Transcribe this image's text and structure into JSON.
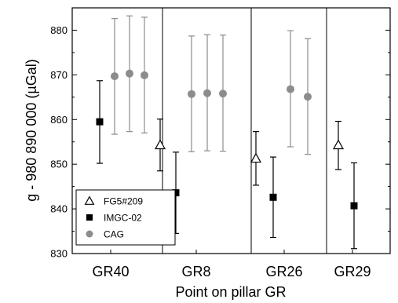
{
  "chart_data": {
    "type": "scatter",
    "xlabel": "Point on pillar GR",
    "ylabel": "g - 980 890 000 (µGal)",
    "categories": [
      "GR40",
      "GR8",
      "GR26",
      "GR29"
    ],
    "ylim": [
      830,
      885
    ],
    "yticks": [
      830,
      840,
      850,
      860,
      870,
      880
    ],
    "minor_ticks": true,
    "legend_position": "lower-left",
    "series": [
      {
        "name": "FG5#209",
        "marker": "open-triangle",
        "color": "#000000",
        "points": [
          {
            "category": "GR8",
            "offset": 0,
            "y": 854.3,
            "err_low": 848.5,
            "err_high": 860.1
          },
          {
            "category": "GR26",
            "offset": 0,
            "y": 851.3,
            "err_low": 845.3,
            "err_high": 857.3
          },
          {
            "category": "GR29",
            "offset": 0,
            "y": 854.3,
            "err_low": 848.8,
            "err_high": 859.6
          }
        ]
      },
      {
        "name": "IMGC-02",
        "marker": "filled-square",
        "color": "#000000",
        "points": [
          {
            "category": "GR40",
            "offset": 0,
            "y": 859.5,
            "err_low": 850.2,
            "err_high": 868.7
          },
          {
            "category": "GR8",
            "offset": 1,
            "y": 843.6,
            "err_low": 834.5,
            "err_high": 852.7
          },
          {
            "category": "GR26",
            "offset": 1,
            "y": 842.6,
            "err_low": 833.6,
            "err_high": 851.6
          },
          {
            "category": "GR29",
            "offset": 1,
            "y": 840.7,
            "err_low": 831.1,
            "err_high": 850.3
          }
        ]
      },
      {
        "name": "CAG",
        "marker": "filled-circle",
        "color": "#8c8c8c",
        "points": [
          {
            "category": "GR40",
            "offset": 1,
            "y": 869.7,
            "err_low": 856.7,
            "err_high": 882.6
          },
          {
            "category": "GR40",
            "offset": 2,
            "y": 870.3,
            "err_low": 857.3,
            "err_high": 883.2
          },
          {
            "category": "GR40",
            "offset": 3,
            "y": 869.9,
            "err_low": 857.0,
            "err_high": 882.9
          },
          {
            "category": "GR8",
            "offset": 2,
            "y": 865.7,
            "err_low": 852.8,
            "err_high": 878.7
          },
          {
            "category": "GR8",
            "offset": 3,
            "y": 865.9,
            "err_low": 853.0,
            "err_high": 879.0
          },
          {
            "category": "GR8",
            "offset": 4,
            "y": 865.8,
            "err_low": 852.9,
            "err_high": 878.9
          },
          {
            "category": "GR26",
            "offset": 2,
            "y": 866.8,
            "err_low": 853.9,
            "err_high": 879.9
          },
          {
            "category": "GR26",
            "offset": 3,
            "y": 865.1,
            "err_low": 852.2,
            "err_high": 878.1
          }
        ]
      }
    ]
  }
}
